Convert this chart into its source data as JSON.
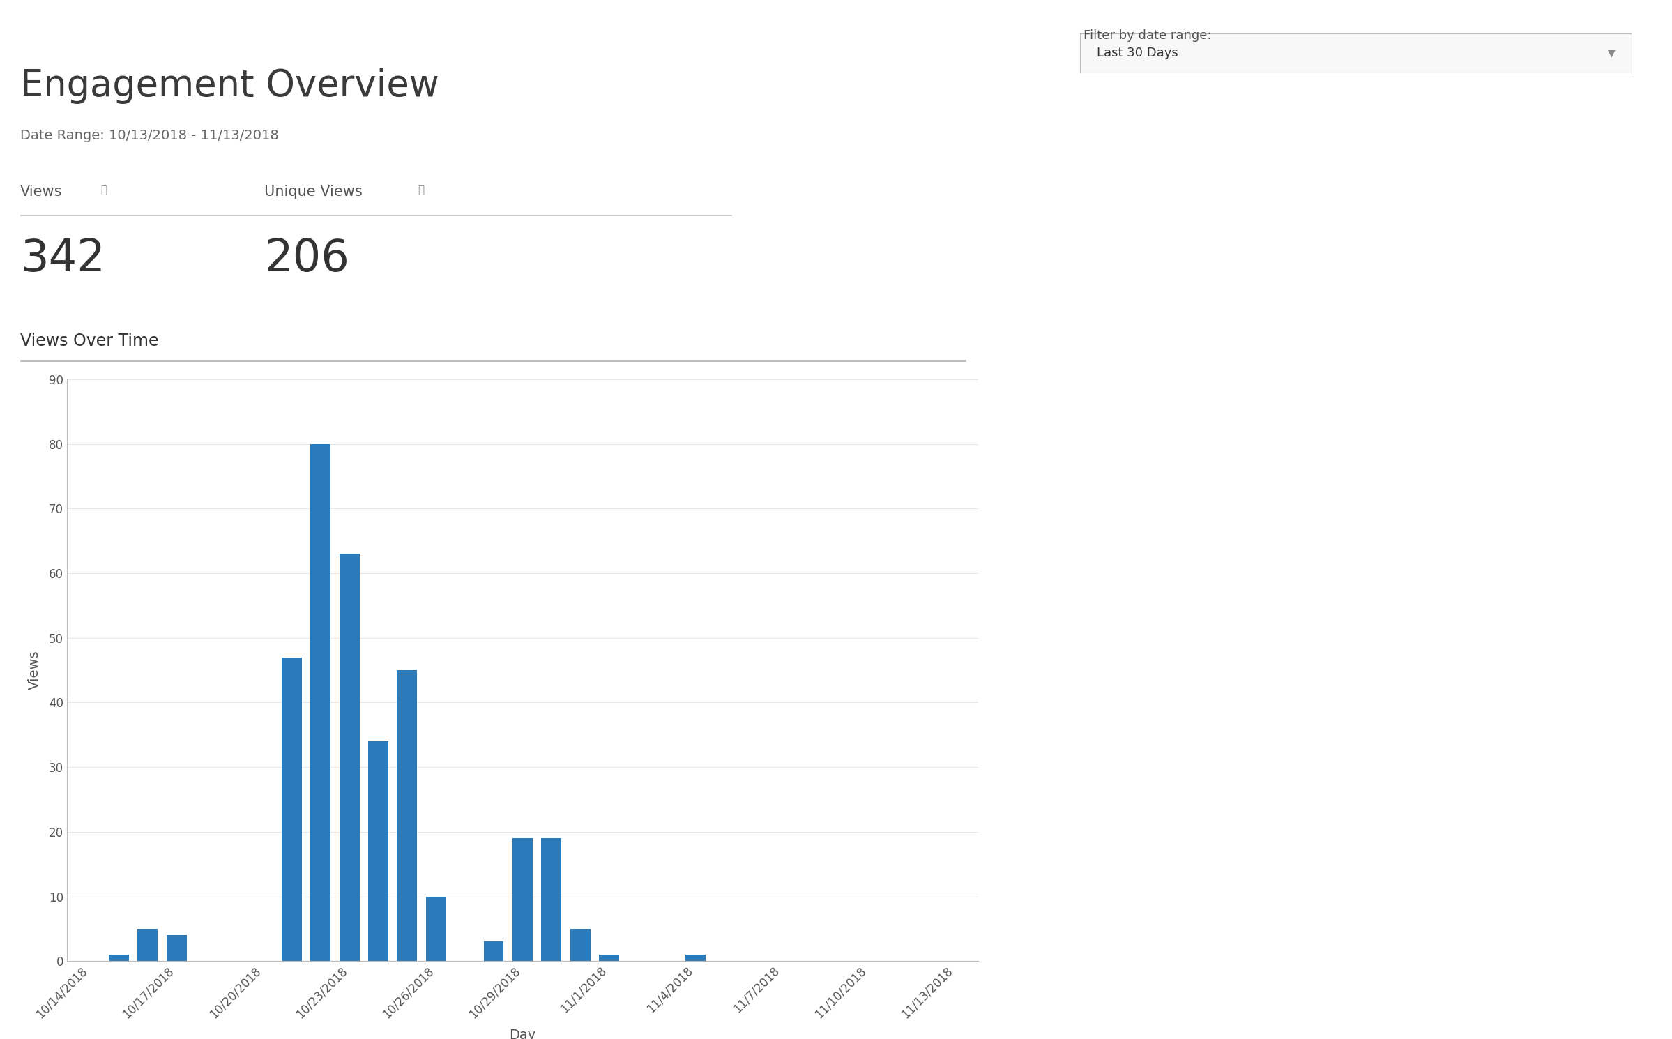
{
  "title": "Engagement Overview",
  "date_range_label": "Date Range: 10/13/2018 - 11/13/2018",
  "views_label": "Views",
  "unique_views_label": "Unique Views",
  "views_count": "342",
  "unique_views_count": "206",
  "section_label": "Views Over Time",
  "filter_label": "Filter by date range:",
  "filter_value": "Last 30 Days",
  "xlabel": "Day",
  "ylabel": "Views",
  "ylim": [
    0,
    90
  ],
  "yticks": [
    0,
    10,
    20,
    30,
    40,
    50,
    60,
    70,
    80,
    90
  ],
  "bar_color": "#2b7bba",
  "background_color": "#ffffff",
  "xtick_labels": [
    "10/14/2018",
    "10/17/2018",
    "10/20/2018",
    "10/23/2018",
    "10/26/2018",
    "10/29/2018",
    "11/1/2018",
    "11/4/2018",
    "11/7/2018",
    "11/10/2018",
    "11/13/2018"
  ],
  "xtick_positions": [
    0,
    3,
    6,
    9,
    12,
    15,
    18,
    21,
    24,
    27,
    30
  ],
  "values": [
    0,
    1,
    5,
    4,
    0,
    0,
    0,
    47,
    80,
    63,
    34,
    45,
    10,
    0,
    3,
    19,
    19,
    5,
    1,
    0,
    0,
    1,
    0,
    0,
    0,
    0,
    0,
    0,
    0,
    0,
    0
  ],
  "title_fontsize": 38,
  "date_range_fontsize": 14,
  "label_fontsize": 15,
  "count_fontsize": 46,
  "section_fontsize": 17,
  "tick_fontsize": 12,
  "axis_label_fontsize": 14,
  "filter_label_fontsize": 13,
  "filter_value_fontsize": 13
}
